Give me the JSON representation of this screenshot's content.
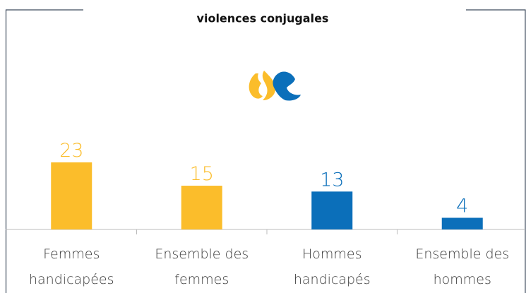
{
  "chart_data": {
    "type": "bar",
    "title": "violences conjugales",
    "categories": [
      "Femmes handicapées",
      "Ensemble des femmes",
      "Hommes handicapés",
      "Ensemble des hommes"
    ],
    "values": [
      23,
      15,
      13,
      4
    ],
    "colors": [
      "#fbbd2b",
      "#fbbd2b",
      "#0b6fba",
      "#0b6fba"
    ]
  }
}
